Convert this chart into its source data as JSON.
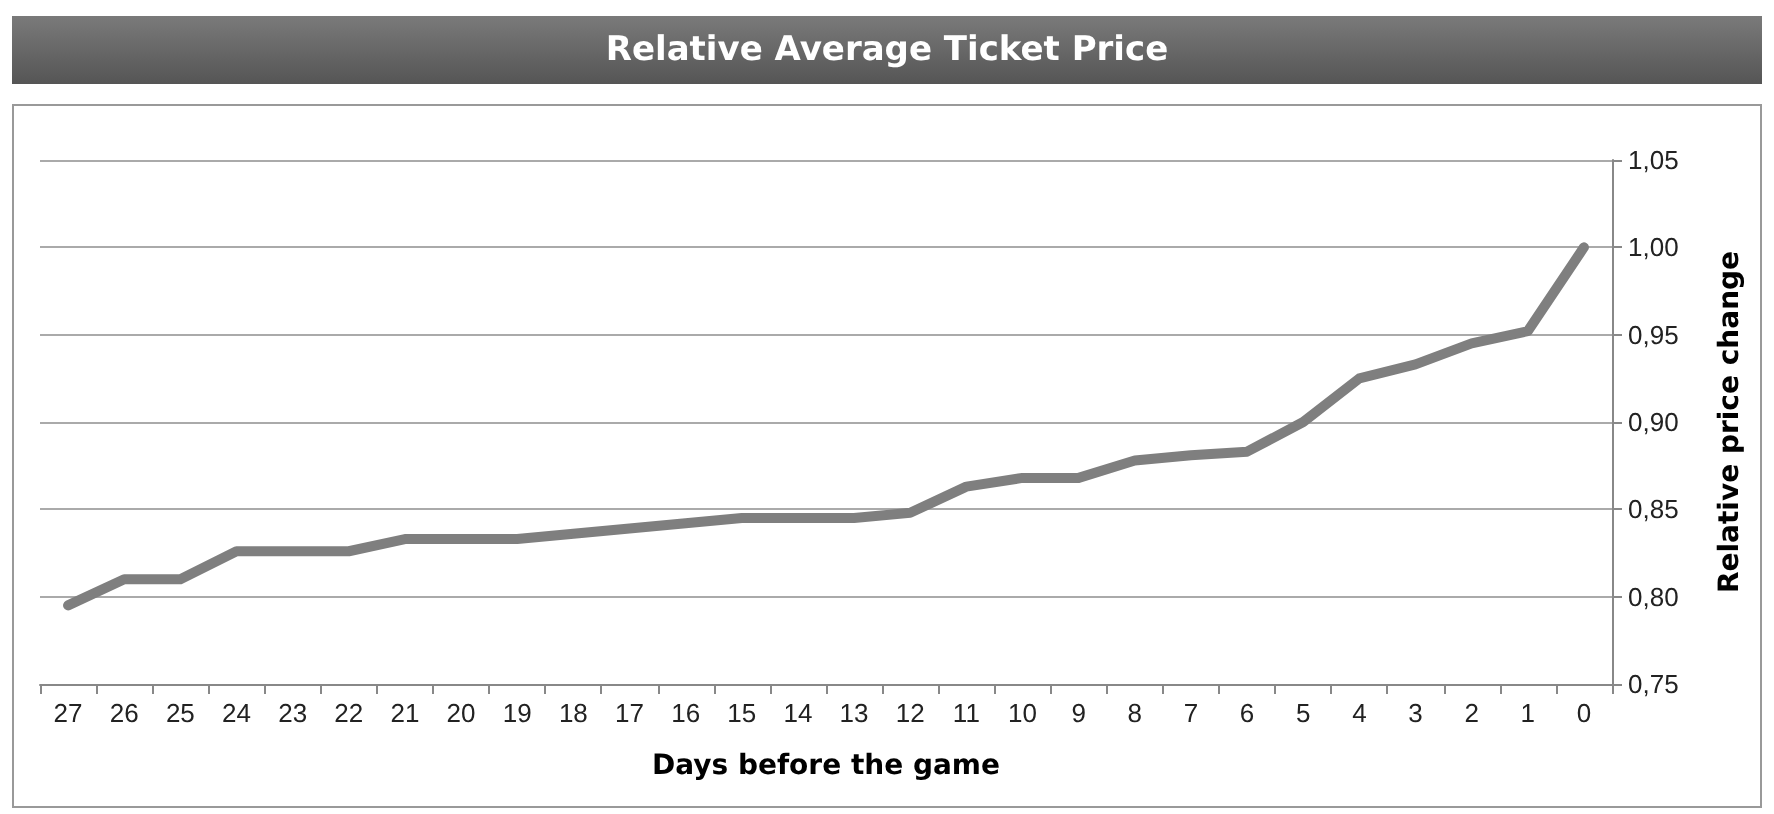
{
  "chart_data": {
    "type": "line",
    "title": "Relative Average Ticket Price",
    "xlabel": "Days before the game",
    "ylabel": "Relative price change",
    "categories": [
      "27",
      "26",
      "25",
      "24",
      "23",
      "22",
      "21",
      "20",
      "19",
      "18",
      "17",
      "16",
      "15",
      "14",
      "13",
      "12",
      "11",
      "10",
      "9",
      "8",
      "7",
      "6",
      "5",
      "4",
      "3",
      "2",
      "1",
      "0"
    ],
    "series": [
      {
        "color": "#7f7f7f",
        "values": [
          0.795,
          0.81,
          0.81,
          0.826,
          0.826,
          0.826,
          0.833,
          0.833,
          0.833,
          0.836,
          0.839,
          0.842,
          0.845,
          0.845,
          0.845,
          0.848,
          0.863,
          0.868,
          0.868,
          0.878,
          0.881,
          0.883,
          0.9,
          0.925,
          0.933,
          0.945,
          0.952,
          1.0
        ]
      }
    ],
    "ylim": [
      0.75,
      1.05
    ],
    "yticks": [
      {
        "value": 0.75,
        "label": "0,75"
      },
      {
        "value": 0.8,
        "label": "0,80"
      },
      {
        "value": 0.85,
        "label": "0,85"
      },
      {
        "value": 0.9,
        "label": "0,90"
      },
      {
        "value": 0.95,
        "label": "0,95"
      },
      {
        "value": 1.0,
        "label": "1,00"
      },
      {
        "value": 1.05,
        "label": "1,05"
      }
    ],
    "grid": "y",
    "marker": "none",
    "line_style": "solid"
  }
}
